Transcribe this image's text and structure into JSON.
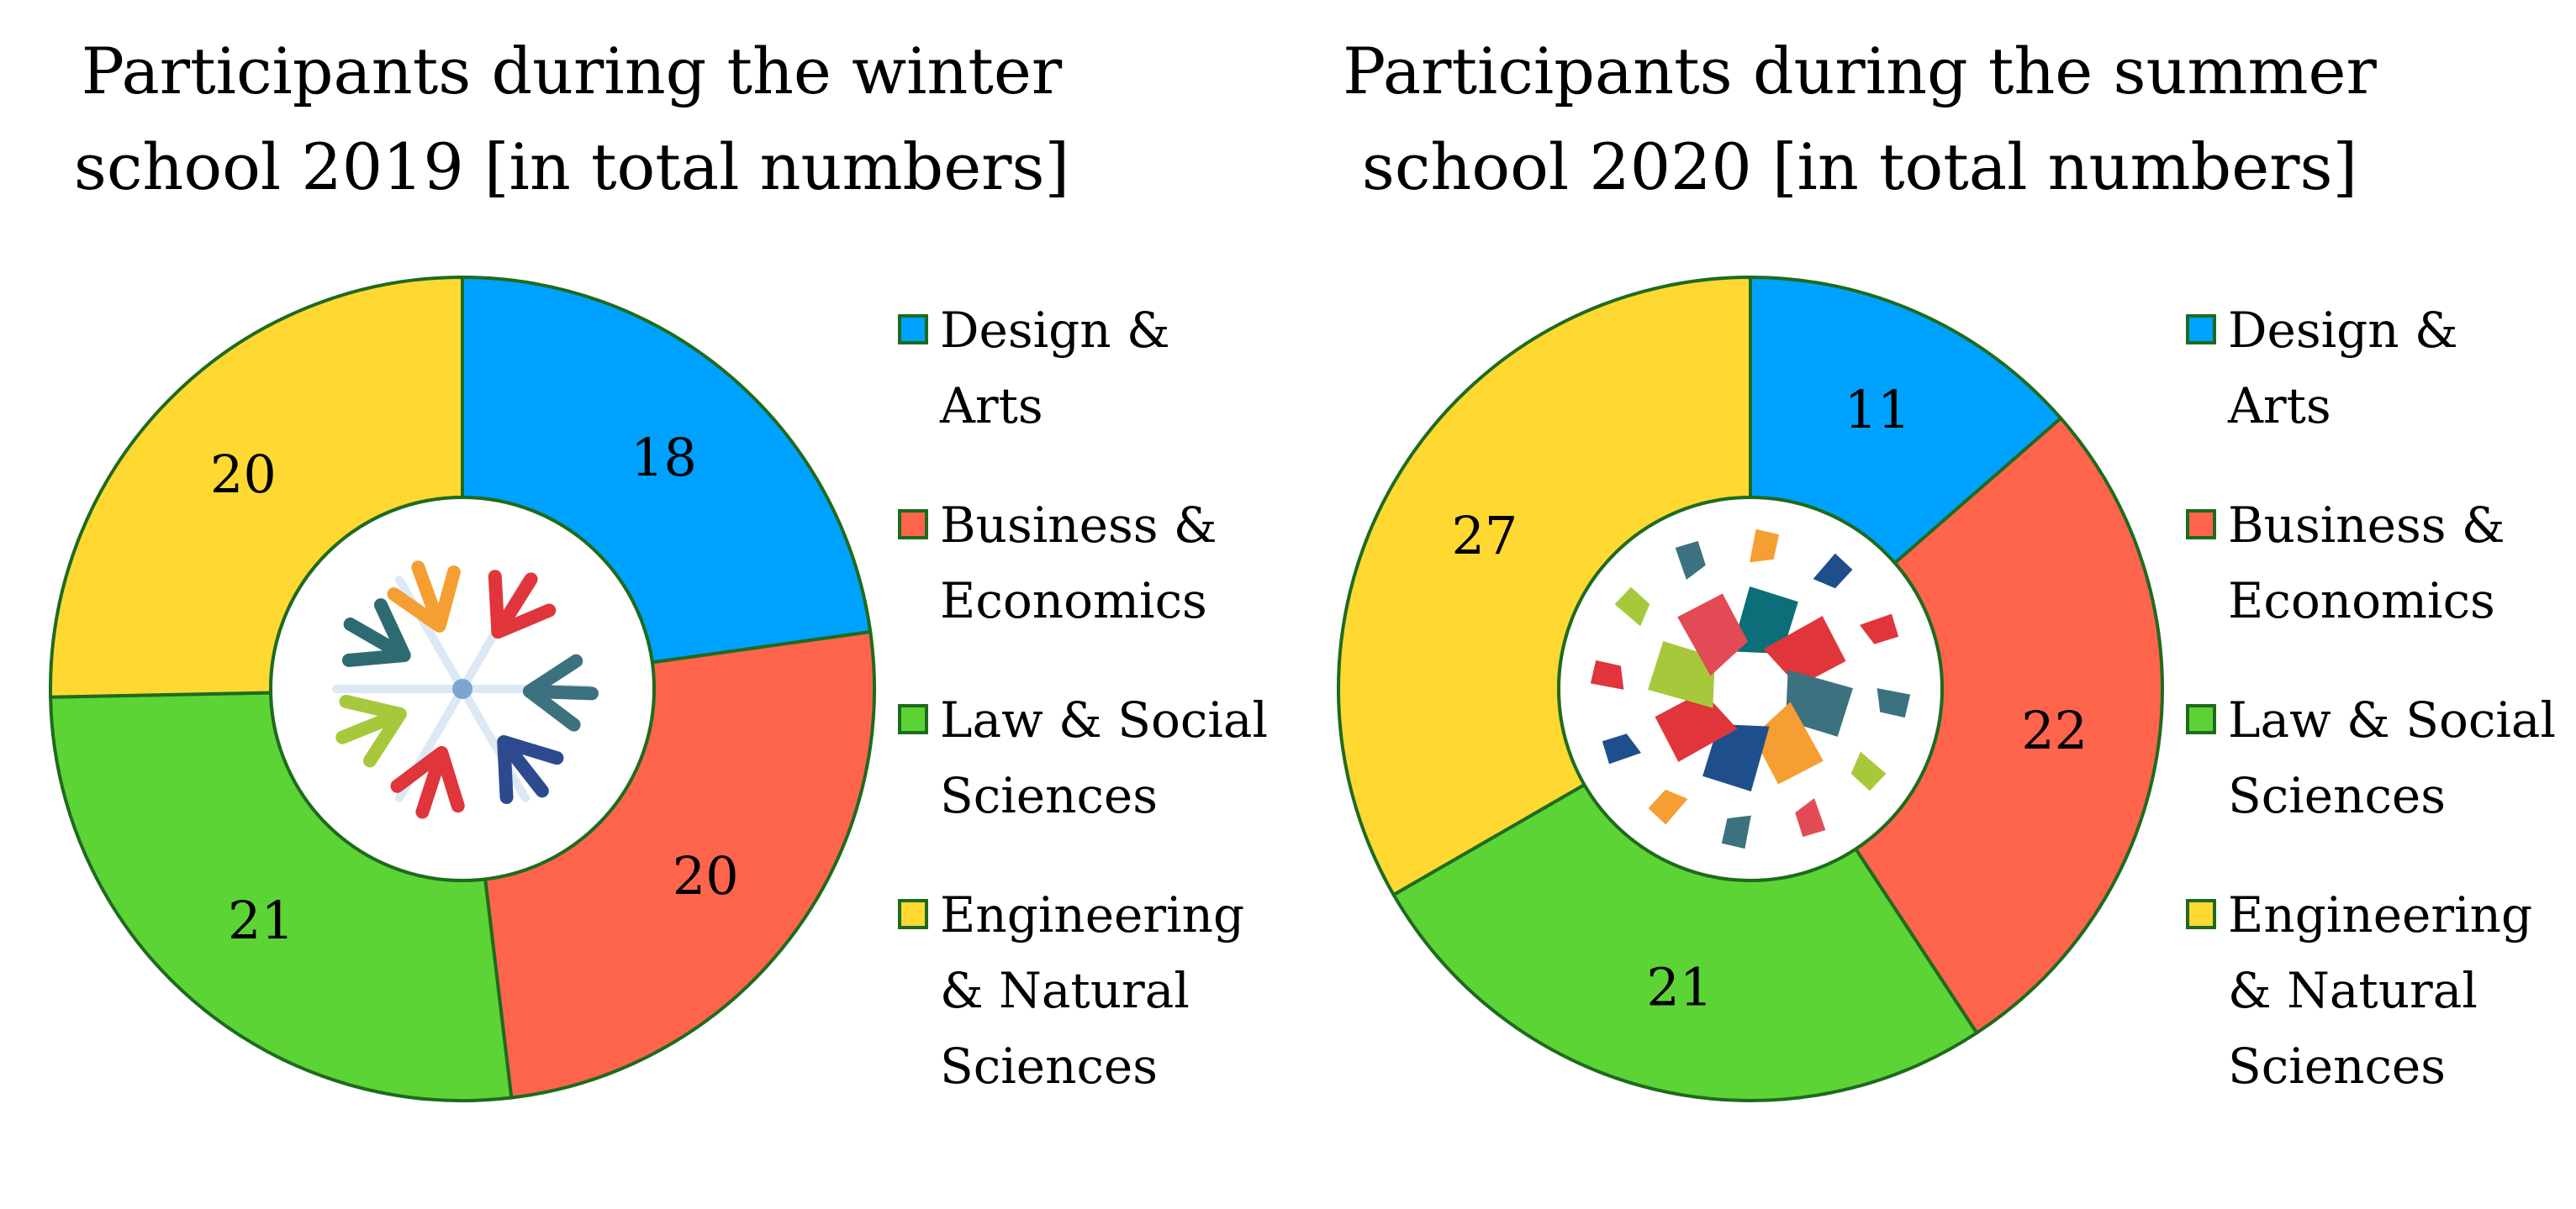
{
  "colors": {
    "design_arts": "#00A2FF",
    "business_economics": "#FF644D",
    "law_social": "#5CD435",
    "engineering_natural": "#FFD932",
    "border": "#1E6B1E"
  },
  "chart_data": [
    {
      "type": "donut",
      "title_lines": [
        "Participants during the winter",
        "school 2019 [in total numbers]"
      ],
      "categories": [
        "Design & Arts",
        "Business & Economics",
        "Law & Social Sciences",
        "Engineering & Natural Sciences"
      ],
      "legend_lines": [
        [
          "Design &",
          "Arts"
        ],
        [
          "Business &",
          "Economics"
        ],
        [
          "Law & Social",
          "Sciences"
        ],
        [
          "Engineering",
          "& Natural",
          "Sciences"
        ]
      ],
      "values": [
        18,
        20,
        21,
        20
      ],
      "data_labels": [
        "18",
        "20",
        "21",
        "20"
      ],
      "center_icon": "snowflake-arrows-icon",
      "legend_position": "right"
    },
    {
      "type": "donut",
      "title_lines": [
        "Participants during the summer",
        "school 2020 [in total numbers]"
      ],
      "categories": [
        "Design & Arts",
        "Business & Economics",
        "Law & Social Sciences",
        "Engineering & Natural Sciences"
      ],
      "legend_lines": [
        [
          "Design &",
          "Arts"
        ],
        [
          "Business &",
          "Economics"
        ],
        [
          "Law & Social",
          "Sciences"
        ],
        [
          "Engineering",
          "& Natural",
          "Sciences"
        ]
      ],
      "values": [
        11,
        22,
        21,
        27
      ],
      "data_labels": [
        "11",
        "22",
        "21",
        "27"
      ],
      "center_icon": "sun-mosaic-icon",
      "legend_position": "right"
    }
  ]
}
